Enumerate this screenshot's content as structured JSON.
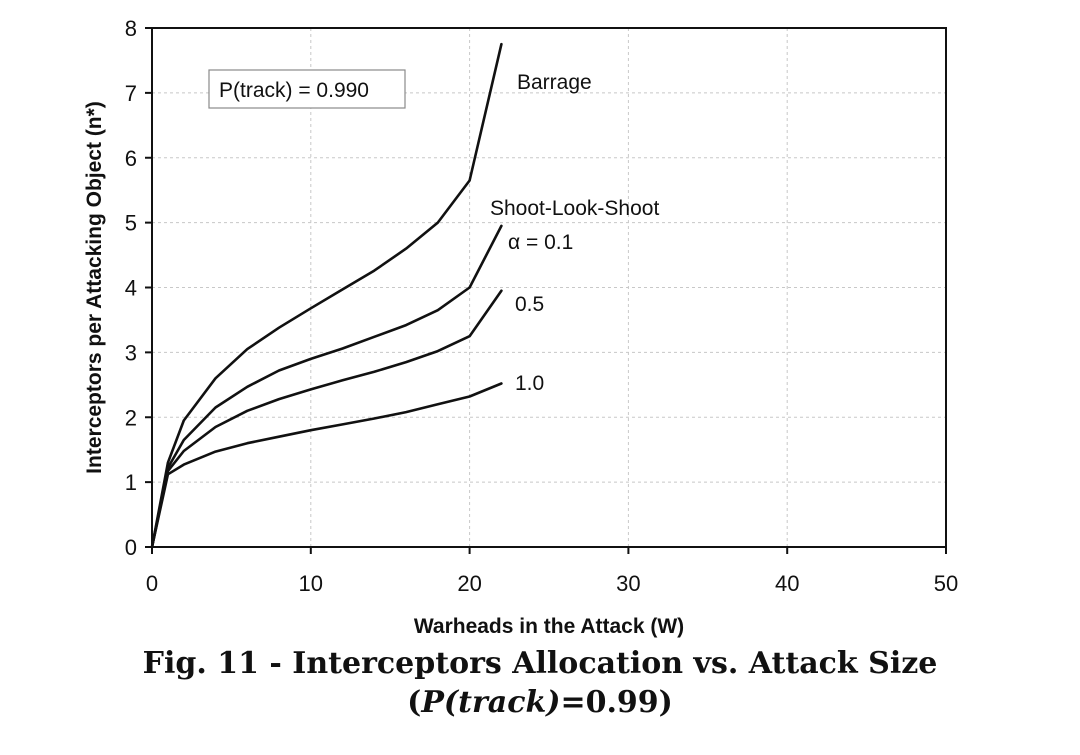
{
  "caption": {
    "line1": "Fig. 11 - Interceptors Allocation vs. Attack Size",
    "line2_open": "(",
    "line2_italic": "P(track)",
    "line2_rest": "=0.99)"
  },
  "chart_data": {
    "type": "line",
    "title": "",
    "xlabel": "Warheads in the Attack (W)",
    "ylabel": "Interceptors per Attacking Object (n*)",
    "xlim": [
      0,
      50
    ],
    "ylim": [
      0,
      8
    ],
    "xticks": [
      0,
      10,
      20,
      30,
      40,
      50
    ],
    "yticks": [
      0,
      1,
      2,
      3,
      4,
      5,
      6,
      7,
      8
    ],
    "grid": true,
    "inset_label": "P(track) = 0.990",
    "group_label": "Shoot-Look-Shoot",
    "series": [
      {
        "label": "Barrage",
        "x": [
          0,
          1,
          2,
          4,
          6,
          8,
          10,
          12,
          14,
          16,
          18,
          20,
          22
        ],
        "y": [
          0,
          1.3,
          1.95,
          2.6,
          3.05,
          3.38,
          3.68,
          3.97,
          4.26,
          4.6,
          5.0,
          5.65,
          7.75
        ]
      },
      {
        "label": "α = 0.1",
        "x": [
          0,
          1,
          2,
          4,
          6,
          8,
          10,
          12,
          14,
          16,
          18,
          20,
          22
        ],
        "y": [
          0,
          1.22,
          1.65,
          2.15,
          2.47,
          2.72,
          2.9,
          3.06,
          3.24,
          3.42,
          3.65,
          4.0,
          4.95
        ]
      },
      {
        "label": "0.5",
        "x": [
          0,
          1,
          2,
          4,
          6,
          8,
          10,
          12,
          14,
          16,
          18,
          20,
          22
        ],
        "y": [
          0,
          1.17,
          1.48,
          1.85,
          2.1,
          2.28,
          2.43,
          2.57,
          2.7,
          2.85,
          3.02,
          3.25,
          3.95
        ]
      },
      {
        "label": "1.0",
        "x": [
          0,
          1,
          2,
          4,
          6,
          8,
          10,
          12,
          14,
          16,
          18,
          20,
          22
        ],
        "y": [
          0,
          1.12,
          1.27,
          1.47,
          1.6,
          1.7,
          1.8,
          1.89,
          1.98,
          2.08,
          2.2,
          2.32,
          2.52
        ]
      }
    ]
  }
}
